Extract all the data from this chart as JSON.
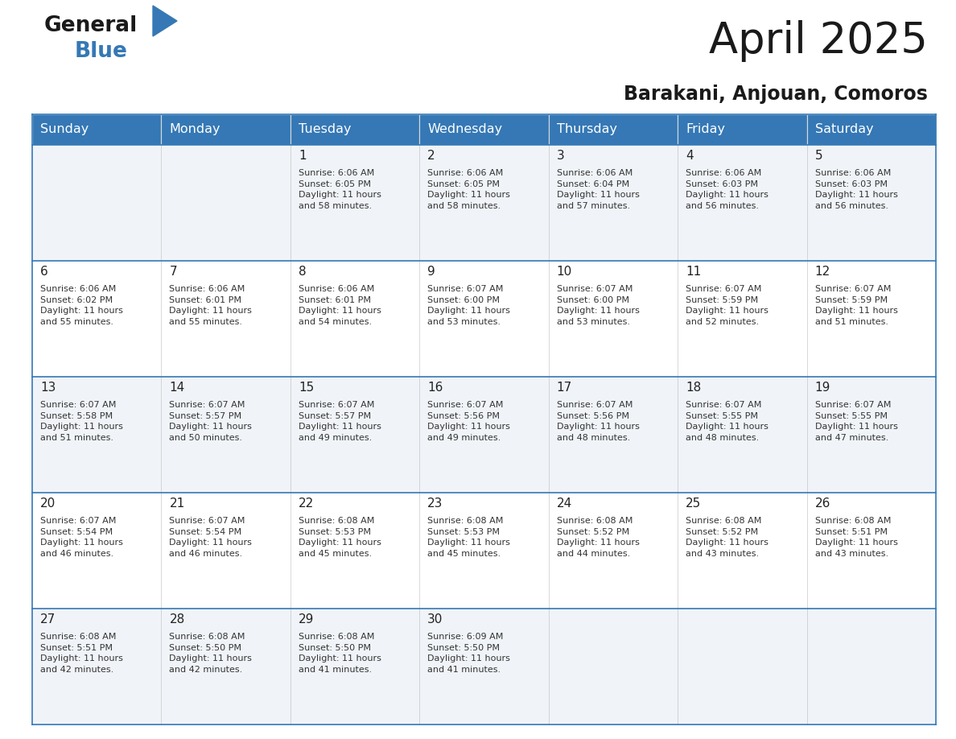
{
  "title": "April 2025",
  "subtitle": "Barakani, Anjouan, Comoros",
  "header_bg_color": "#3578b5",
  "header_text_color": "#ffffff",
  "days_of_week": [
    "Sunday",
    "Monday",
    "Tuesday",
    "Wednesday",
    "Thursday",
    "Friday",
    "Saturday"
  ],
  "row_colors": [
    "#f0f4f8",
    "#ffffff"
  ],
  "cell_border_color": "#3578b5",
  "title_color": "#1a1a1a",
  "subtitle_color": "#1a1a1a",
  "text_color": "#333333",
  "day_number_color": "#222222",
  "logo_general_color": "#1a1a1a",
  "logo_blue_color": "#3578b5",
  "logo_triangle_color": "#3578b5",
  "calendar": [
    [
      {
        "day": "",
        "info": ""
      },
      {
        "day": "",
        "info": ""
      },
      {
        "day": "1",
        "info": "Sunrise: 6:06 AM\nSunset: 6:05 PM\nDaylight: 11 hours\nand 58 minutes."
      },
      {
        "day": "2",
        "info": "Sunrise: 6:06 AM\nSunset: 6:05 PM\nDaylight: 11 hours\nand 58 minutes."
      },
      {
        "day": "3",
        "info": "Sunrise: 6:06 AM\nSunset: 6:04 PM\nDaylight: 11 hours\nand 57 minutes."
      },
      {
        "day": "4",
        "info": "Sunrise: 6:06 AM\nSunset: 6:03 PM\nDaylight: 11 hours\nand 56 minutes."
      },
      {
        "day": "5",
        "info": "Sunrise: 6:06 AM\nSunset: 6:03 PM\nDaylight: 11 hours\nand 56 minutes."
      }
    ],
    [
      {
        "day": "6",
        "info": "Sunrise: 6:06 AM\nSunset: 6:02 PM\nDaylight: 11 hours\nand 55 minutes."
      },
      {
        "day": "7",
        "info": "Sunrise: 6:06 AM\nSunset: 6:01 PM\nDaylight: 11 hours\nand 55 minutes."
      },
      {
        "day": "8",
        "info": "Sunrise: 6:06 AM\nSunset: 6:01 PM\nDaylight: 11 hours\nand 54 minutes."
      },
      {
        "day": "9",
        "info": "Sunrise: 6:07 AM\nSunset: 6:00 PM\nDaylight: 11 hours\nand 53 minutes."
      },
      {
        "day": "10",
        "info": "Sunrise: 6:07 AM\nSunset: 6:00 PM\nDaylight: 11 hours\nand 53 minutes."
      },
      {
        "day": "11",
        "info": "Sunrise: 6:07 AM\nSunset: 5:59 PM\nDaylight: 11 hours\nand 52 minutes."
      },
      {
        "day": "12",
        "info": "Sunrise: 6:07 AM\nSunset: 5:59 PM\nDaylight: 11 hours\nand 51 minutes."
      }
    ],
    [
      {
        "day": "13",
        "info": "Sunrise: 6:07 AM\nSunset: 5:58 PM\nDaylight: 11 hours\nand 51 minutes."
      },
      {
        "day": "14",
        "info": "Sunrise: 6:07 AM\nSunset: 5:57 PM\nDaylight: 11 hours\nand 50 minutes."
      },
      {
        "day": "15",
        "info": "Sunrise: 6:07 AM\nSunset: 5:57 PM\nDaylight: 11 hours\nand 49 minutes."
      },
      {
        "day": "16",
        "info": "Sunrise: 6:07 AM\nSunset: 5:56 PM\nDaylight: 11 hours\nand 49 minutes."
      },
      {
        "day": "17",
        "info": "Sunrise: 6:07 AM\nSunset: 5:56 PM\nDaylight: 11 hours\nand 48 minutes."
      },
      {
        "day": "18",
        "info": "Sunrise: 6:07 AM\nSunset: 5:55 PM\nDaylight: 11 hours\nand 48 minutes."
      },
      {
        "day": "19",
        "info": "Sunrise: 6:07 AM\nSunset: 5:55 PM\nDaylight: 11 hours\nand 47 minutes."
      }
    ],
    [
      {
        "day": "20",
        "info": "Sunrise: 6:07 AM\nSunset: 5:54 PM\nDaylight: 11 hours\nand 46 minutes."
      },
      {
        "day": "21",
        "info": "Sunrise: 6:07 AM\nSunset: 5:54 PM\nDaylight: 11 hours\nand 46 minutes."
      },
      {
        "day": "22",
        "info": "Sunrise: 6:08 AM\nSunset: 5:53 PM\nDaylight: 11 hours\nand 45 minutes."
      },
      {
        "day": "23",
        "info": "Sunrise: 6:08 AM\nSunset: 5:53 PM\nDaylight: 11 hours\nand 45 minutes."
      },
      {
        "day": "24",
        "info": "Sunrise: 6:08 AM\nSunset: 5:52 PM\nDaylight: 11 hours\nand 44 minutes."
      },
      {
        "day": "25",
        "info": "Sunrise: 6:08 AM\nSunset: 5:52 PM\nDaylight: 11 hours\nand 43 minutes."
      },
      {
        "day": "26",
        "info": "Sunrise: 6:08 AM\nSunset: 5:51 PM\nDaylight: 11 hours\nand 43 minutes."
      }
    ],
    [
      {
        "day": "27",
        "info": "Sunrise: 6:08 AM\nSunset: 5:51 PM\nDaylight: 11 hours\nand 42 minutes."
      },
      {
        "day": "28",
        "info": "Sunrise: 6:08 AM\nSunset: 5:50 PM\nDaylight: 11 hours\nand 42 minutes."
      },
      {
        "day": "29",
        "info": "Sunrise: 6:08 AM\nSunset: 5:50 PM\nDaylight: 11 hours\nand 41 minutes."
      },
      {
        "day": "30",
        "info": "Sunrise: 6:09 AM\nSunset: 5:50 PM\nDaylight: 11 hours\nand 41 minutes."
      },
      {
        "day": "",
        "info": ""
      },
      {
        "day": "",
        "info": ""
      },
      {
        "day": "",
        "info": ""
      }
    ]
  ],
  "fig_width": 11.88,
  "fig_height": 9.18,
  "dpi": 100
}
